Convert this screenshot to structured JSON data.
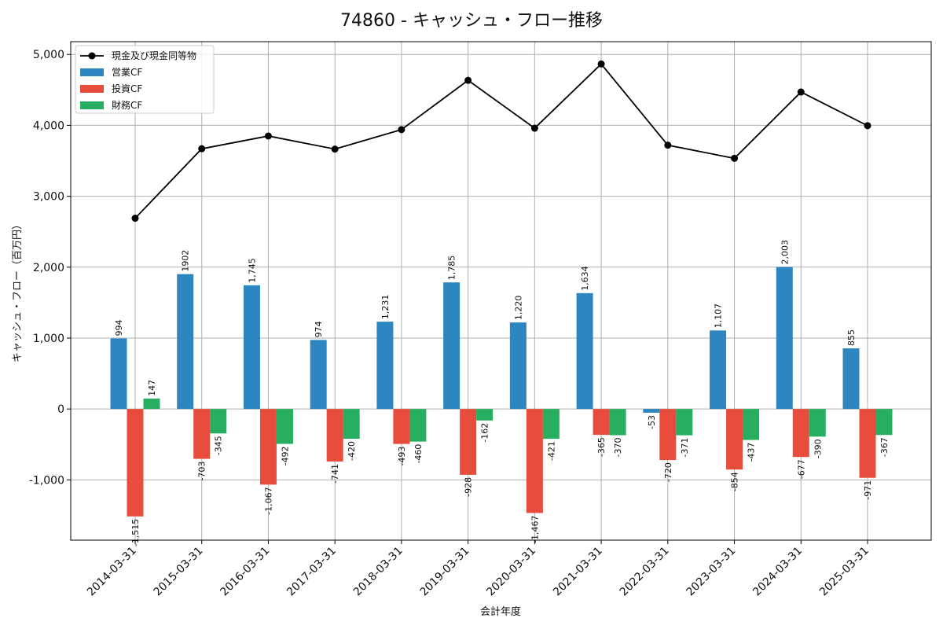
{
  "chart_data": {
    "type": "bar",
    "title": "74860 - キャッシュ・フロー推移",
    "xlabel": "会計年度",
    "ylabel": "キャッシュ・フロー（百万円）",
    "ylim": [
      -1850,
      5180
    ],
    "yticks": [
      -1000,
      0,
      1000,
      2000,
      3000,
      4000,
      5000
    ],
    "ytick_labels": [
      "-1,000",
      "0",
      "1,000",
      "2,000",
      "3,000",
      "4,000",
      "5,000"
    ],
    "grid": true,
    "legend_position": "top-left",
    "categories": [
      "2014-03-31",
      "2015-03-31",
      "2016-03-31",
      "2017-03-31",
      "2018-03-31",
      "2019-03-31",
      "2020-03-31",
      "2021-03-31",
      "2022-03-31",
      "2023-03-31",
      "2024-03-31",
      "2025-03-31"
    ],
    "series": [
      {
        "name": "営業CF",
        "type": "bar",
        "color": "#2e86c1",
        "values": [
          994,
          1902,
          1745,
          974,
          1231,
          1785,
          1220,
          1634,
          -53,
          1107,
          2003,
          855
        ],
        "labels": [
          "994",
          "1902",
          "1,745",
          "974",
          "1,231",
          "1,785",
          "1,220",
          "1,634",
          "-53",
          "1,107",
          "2,003",
          "855"
        ]
      },
      {
        "name": "投資CF",
        "type": "bar",
        "color": "#e74c3c",
        "values": [
          -1515,
          -703,
          -1067,
          -741,
          -493,
          -928,
          -1467,
          -365,
          -720,
          -854,
          -677,
          -971
        ],
        "labels": [
          "-1,515",
          "-703",
          "-1,067",
          "-741",
          "-493",
          "-928",
          "-1,467",
          "-365",
          "-720",
          "-854",
          "-677",
          "-971"
        ]
      },
      {
        "name": "財務CF",
        "type": "bar",
        "color": "#27ae60",
        "values": [
          147,
          -345,
          -492,
          -420,
          -460,
          -162,
          -421,
          -370,
          -371,
          -437,
          -390,
          -367
        ],
        "labels": [
          "147",
          "-345",
          "-492",
          "-420",
          "-460",
          "-162",
          "-421",
          "-370",
          "-371",
          "-437",
          "-390",
          "-367"
        ]
      },
      {
        "name": "現金及び現金同等物",
        "type": "line",
        "color": "#000000",
        "values": [
          2690,
          3670,
          3850,
          3665,
          3940,
          4635,
          3960,
          4865,
          3720,
          3535,
          4470,
          3995
        ]
      }
    ]
  }
}
